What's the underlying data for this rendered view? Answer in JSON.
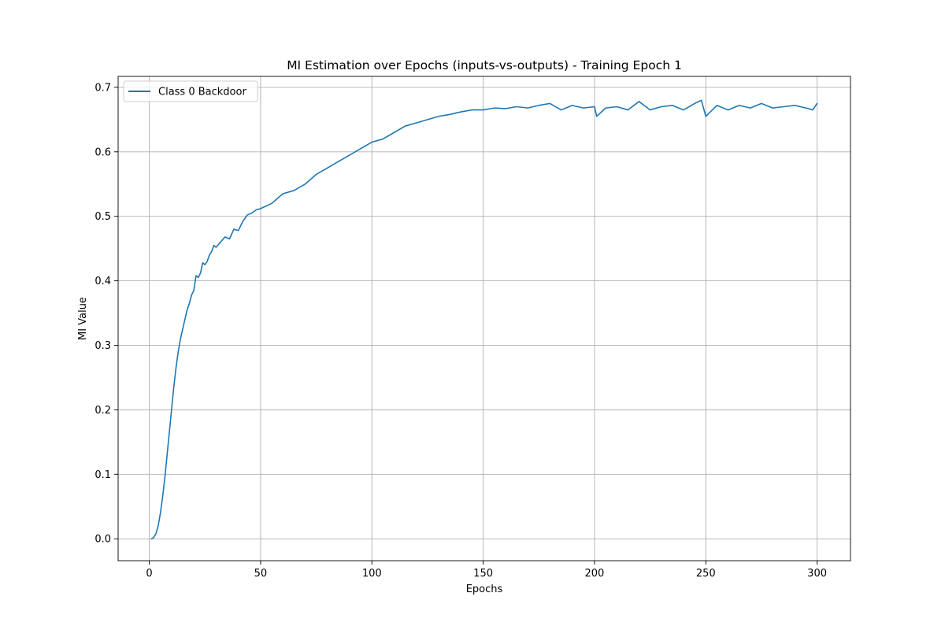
{
  "chart_data": {
    "type": "line",
    "title": "MI Estimation over Epochs (inputs-vs-outputs) - Training Epoch 1",
    "xlabel": "Epochs",
    "ylabel": "MI Value",
    "xlim": [
      -14,
      315
    ],
    "ylim": [
      -0.034,
      0.717
    ],
    "xticks": [
      0,
      50,
      100,
      150,
      200,
      250,
      300
    ],
    "yticks": [
      0.0,
      0.1,
      0.2,
      0.3,
      0.4,
      0.5,
      0.6,
      0.7
    ],
    "xtick_labels": [
      "0",
      "50",
      "100",
      "150",
      "200",
      "250",
      "300"
    ],
    "ytick_labels": [
      "0.0",
      "0.1",
      "0.2",
      "0.3",
      "0.4",
      "0.5",
      "0.6",
      "0.7"
    ],
    "grid": true,
    "legend_position": "top-left",
    "series": [
      {
        "name": "Class 0 Backdoor",
        "color": "#1f77b4",
        "x": [
          1,
          2,
          3,
          4,
          5,
          6,
          7,
          8,
          9,
          10,
          11,
          12,
          13,
          14,
          15,
          16,
          17,
          18,
          19,
          20,
          21,
          22,
          23,
          24,
          25,
          26,
          27,
          28,
          29,
          30,
          32,
          34,
          36,
          38,
          40,
          42,
          44,
          46,
          48,
          50,
          55,
          60,
          65,
          70,
          75,
          80,
          85,
          90,
          95,
          100,
          105,
          110,
          115,
          120,
          125,
          130,
          135,
          140,
          145,
          150,
          155,
          160,
          165,
          170,
          175,
          180,
          185,
          190,
          195,
          200,
          201,
          205,
          210,
          215,
          220,
          225,
          230,
          235,
          240,
          245,
          248,
          250,
          255,
          260,
          265,
          270,
          275,
          280,
          285,
          290,
          295,
          298,
          300
        ],
        "y": [
          0.0,
          0.002,
          0.008,
          0.02,
          0.04,
          0.065,
          0.095,
          0.13,
          0.165,
          0.2,
          0.235,
          0.265,
          0.29,
          0.31,
          0.325,
          0.34,
          0.355,
          0.365,
          0.378,
          0.385,
          0.408,
          0.405,
          0.412,
          0.428,
          0.425,
          0.43,
          0.44,
          0.445,
          0.455,
          0.452,
          0.46,
          0.468,
          0.465,
          0.48,
          0.478,
          0.492,
          0.502,
          0.505,
          0.51,
          0.512,
          0.52,
          0.535,
          0.54,
          0.55,
          0.565,
          0.575,
          0.585,
          0.595,
          0.605,
          0.615,
          0.62,
          0.63,
          0.64,
          0.645,
          0.65,
          0.655,
          0.658,
          0.662,
          0.665,
          0.665,
          0.668,
          0.667,
          0.67,
          0.668,
          0.672,
          0.675,
          0.665,
          0.672,
          0.668,
          0.67,
          0.655,
          0.668,
          0.67,
          0.665,
          0.678,
          0.665,
          0.67,
          0.672,
          0.665,
          0.675,
          0.68,
          0.655,
          0.672,
          0.665,
          0.672,
          0.668,
          0.675,
          0.668,
          0.67,
          0.672,
          0.668,
          0.665,
          0.675
        ]
      }
    ]
  }
}
